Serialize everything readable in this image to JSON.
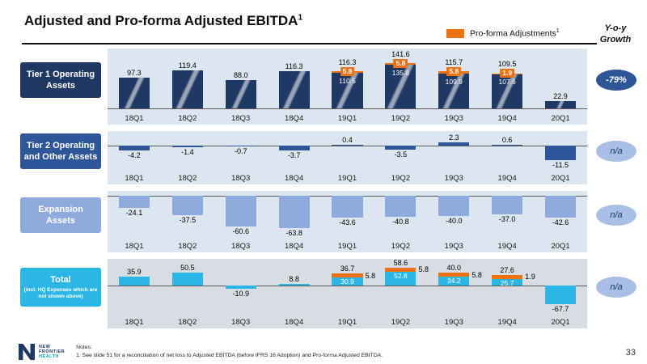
{
  "header": {
    "title": "Adjusted and Pro-forma Adjusted EBITDA",
    "title_sup": "1",
    "legend_label": "Pro-forma Adjustments",
    "legend_sup": "1",
    "yoy_line1": "Y-o-y",
    "yoy_line2": "Growth"
  },
  "colors": {
    "orange": "#F0720F",
    "navy": "#1F3864",
    "blue": "#2E5597",
    "lightblue": "#8FAADC",
    "cyan": "#2BB7E5",
    "teal": "#00A7B5",
    "panel": "#DCE6F1",
    "panel4": "#D8DCE3",
    "badge_dark": "#2E5597",
    "badge_light": "#A9BFE6",
    "axis": "#595959"
  },
  "chart_data": [
    {
      "type": "bar",
      "stacked": true,
      "row_label": "Tier 1 Operating Assets",
      "categories": [
        "18Q1",
        "18Q2",
        "18Q3",
        "18Q4",
        "19Q1",
        "19Q2",
        "19Q3",
        "19Q4",
        "20Q1"
      ],
      "series": [
        {
          "name": "Adjusted EBITDA",
          "values": [
            97.3,
            119.4,
            88.0,
            116.3,
            110.5,
            135.8,
            109.9,
            107.6,
            22.9
          ]
        },
        {
          "name": "Pro-forma Adjustments",
          "values": [
            0,
            0,
            0,
            0,
            5.8,
            5.8,
            5.8,
            1.9,
            0
          ]
        }
      ],
      "totals": [
        97.3,
        119.4,
        88.0,
        116.3,
        116.3,
        141.6,
        115.7,
        109.5,
        22.9
      ],
      "growth": "-79%"
    },
    {
      "type": "bar",
      "stacked": false,
      "row_label": "Tier 2 Operating and Other Assets",
      "categories": [
        "18Q1",
        "18Q2",
        "18Q3",
        "18Q4",
        "19Q1",
        "19Q2",
        "19Q3",
        "19Q4",
        "20Q1"
      ],
      "series": [
        {
          "name": "Adjusted EBITDA",
          "values": [
            -4.2,
            -1.4,
            -0.7,
            -3.7,
            0.4,
            -3.5,
            2.3,
            0.6,
            -11.5
          ]
        }
      ],
      "growth": "n/a"
    },
    {
      "type": "bar",
      "stacked": false,
      "row_label": "Expansion Assets",
      "categories": [
        "18Q1",
        "18Q2",
        "18Q3",
        "18Q4",
        "19Q1",
        "19Q2",
        "19Q3",
        "19Q4",
        "20Q1"
      ],
      "series": [
        {
          "name": "Adjusted EBITDA",
          "values": [
            -24.1,
            -37.5,
            -60.6,
            -63.8,
            -43.6,
            -40.8,
            -40.0,
            -37.0,
            -42.6
          ]
        }
      ],
      "growth": "n/a"
    },
    {
      "type": "bar",
      "stacked": true,
      "row_label": "Total",
      "row_sublabel": "(incl. HQ Expenses  which are not shown above)",
      "categories": [
        "18Q1",
        "18Q2",
        "18Q3",
        "18Q4",
        "19Q1",
        "19Q2",
        "19Q3",
        "19Q4",
        "20Q1"
      ],
      "series": [
        {
          "name": "Adjusted EBITDA",
          "values": [
            35.9,
            50.5,
            -10.9,
            8.8,
            30.9,
            52.8,
            34.2,
            25.7,
            -67.7
          ]
        },
        {
          "name": "Pro-forma Adjustments",
          "values": [
            0,
            0,
            0,
            0,
            5.8,
            5.8,
            5.8,
            1.9,
            0
          ]
        }
      ],
      "totals": [
        35.9,
        50.5,
        -10.9,
        8.8,
        36.7,
        58.6,
        40.0,
        27.6,
        -67.7
      ],
      "growth": "n/a"
    }
  ],
  "footer": {
    "logo_line1": "NEW",
    "logo_line2": "FRONTIER",
    "logo_line3": "HEALTH",
    "notes_label": "Notes:",
    "note1": "1. See slide 51 for a reconciliation of net loss to Adjusted EBITDA (before IFRS 16 Adoption) and Pro-forma Adjusted EBITDA.",
    "page_number": "33"
  }
}
